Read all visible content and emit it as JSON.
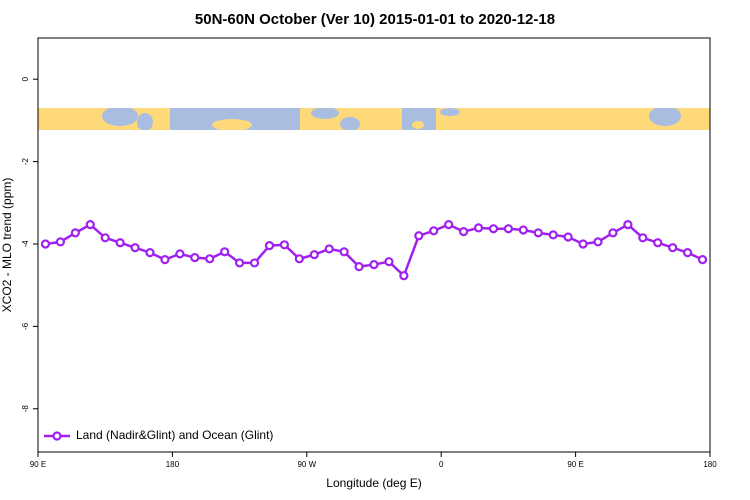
{
  "chart_data": {
    "type": "line",
    "title": "50N-60N October (Ver 10)   2015-01-01 to 2020-12-18",
    "x_label": "Longitude (deg E)",
    "y_label": "XCO2 - MLO trend (ppm)",
    "x": [
      95,
      105,
      115,
      125,
      135,
      145,
      155,
      165,
      175,
      185,
      195,
      205,
      215,
      225,
      235,
      245,
      255,
      265,
      275,
      285,
      295,
      305,
      315,
      325,
      335,
      345,
      355,
      365,
      375,
      385,
      395,
      405,
      415,
      425,
      435,
      445,
      455,
      465,
      475,
      485,
      495,
      505,
      515,
      525,
      535
    ],
    "series": [
      {
        "name": "Land (Nadir&Glint) and Ocean (Glint)",
        "color": "#a020f0",
        "values": [
          -4.0,
          -3.95,
          -3.73,
          -3.53,
          -3.85,
          -3.97,
          -4.09,
          -4.21,
          -4.38,
          -4.24,
          -4.33,
          -4.36,
          -4.19,
          -4.46,
          -4.46,
          -4.04,
          -4.02,
          -4.36,
          -4.26,
          -4.12,
          -4.19,
          -4.55,
          -4.5,
          -4.43,
          -4.77,
          -3.8,
          -3.68,
          -3.53,
          -3.7,
          -3.61,
          -3.63,
          -3.63,
          -3.66,
          -3.73,
          -3.78,
          -3.83,
          -4.0,
          -3.95,
          -3.73,
          -3.53,
          -3.85,
          -3.97,
          -4.09,
          -4.21,
          -4.38
        ]
      }
    ],
    "xlim": [
      90,
      540
    ],
    "xticks": [
      {
        "value": 90,
        "label": "90 E"
      },
      {
        "value": 180,
        "label": "180"
      },
      {
        "value": 270,
        "label": "90 W"
      },
      {
        "value": 360,
        "label": "0"
      },
      {
        "value": 450,
        "label": "90 E"
      },
      {
        "value": 540,
        "label": "180"
      }
    ],
    "ylim": [
      -9.05,
      1.0
    ],
    "yticks": [
      0,
      -2,
      -4,
      -6,
      -8
    ],
    "grid": false,
    "legend": "bottom-left"
  }
}
